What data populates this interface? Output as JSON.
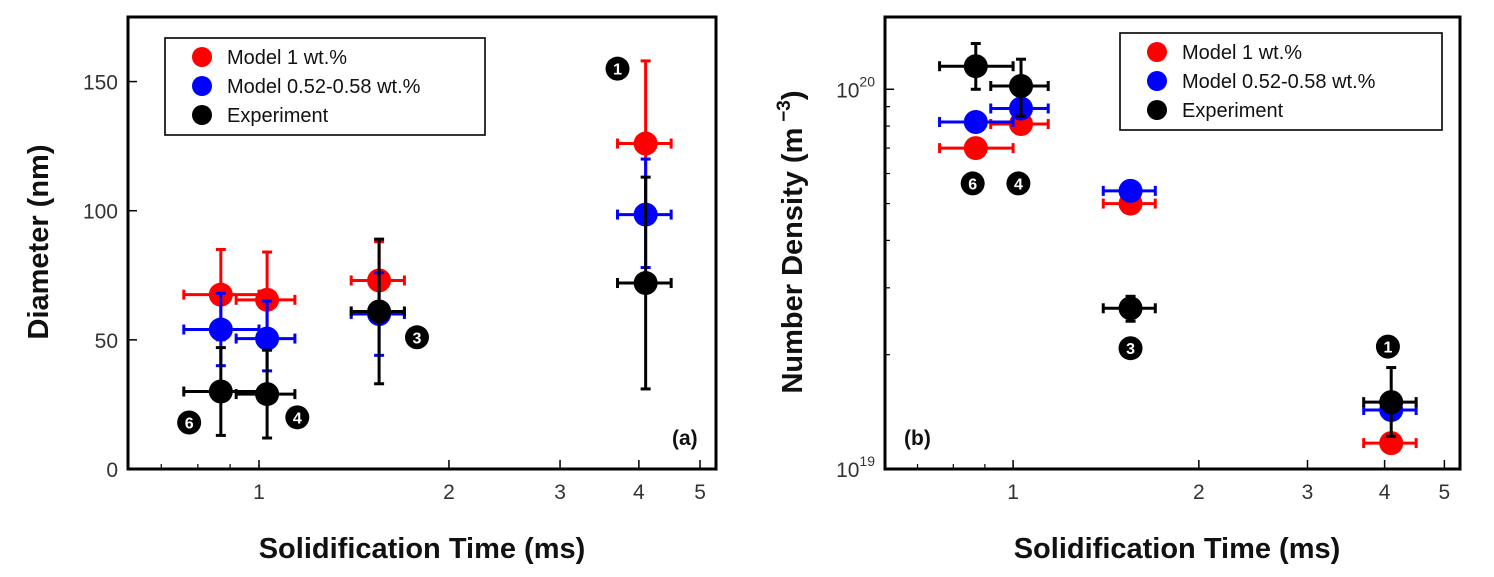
{
  "chart_data": [
    {
      "type": "scatter",
      "panel_label": "(a)",
      "xlabel": "Solidification Time (ms)",
      "ylabel": "Diameter (nm)",
      "xscale": "log",
      "yscale": "linear",
      "xlim": [
        0.62,
        5.3
      ],
      "ylim": [
        0,
        175
      ],
      "xticks": [
        1,
        2,
        3,
        4,
        5
      ],
      "xtick_labels": [
        "1",
        "2",
        "3",
        "4",
        "5"
      ],
      "yticks": [
        0,
        50,
        100,
        150
      ],
      "ytick_labels": [
        "0",
        "50",
        "100",
        "150"
      ],
      "legend_position": "top-left",
      "series": [
        {
          "name": "Model 1 wt.%",
          "color": "#ff0000",
          "points": [
            {
              "x": 0.87,
              "y": 67.5,
              "xerr": [
                0.76,
                1.0
              ],
              "yerr": [
                50,
                85
              ]
            },
            {
              "x": 1.03,
              "y": 65.5,
              "xerr": [
                0.92,
                1.14
              ],
              "yerr": [
                48,
                84
              ]
            },
            {
              "x": 1.55,
              "y": 73,
              "xerr": [
                1.4,
                1.7
              ],
              "yerr": [
                58,
                88
              ]
            },
            {
              "x": 4.1,
              "y": 126,
              "xerr": [
                3.7,
                4.5
              ],
              "yerr": [
                95,
                158
              ]
            }
          ]
        },
        {
          "name": "Model 0.52-0.58 wt.%",
          "color": "#0000ff",
          "points": [
            {
              "x": 0.87,
              "y": 54,
              "xerr": [
                0.76,
                1.0
              ],
              "yerr": [
                40,
                68
              ]
            },
            {
              "x": 1.03,
              "y": 50.5,
              "xerr": [
                0.92,
                1.14
              ],
              "yerr": [
                38,
                65
              ]
            },
            {
              "x": 1.55,
              "y": 60,
              "xerr": [
                1.4,
                1.7
              ],
              "yerr": [
                44,
                76
              ]
            },
            {
              "x": 4.1,
              "y": 98.5,
              "xerr": [
                3.7,
                4.5
              ],
              "yerr": [
                78,
                120
              ]
            }
          ]
        },
        {
          "name": "Experiment",
          "color": "#000000",
          "points": [
            {
              "x": 0.87,
              "y": 30,
              "xerr": [
                0.76,
                1.0
              ],
              "yerr": [
                13,
                47
              ]
            },
            {
              "x": 1.03,
              "y": 29,
              "xerr": [
                0.92,
                1.14
              ],
              "yerr": [
                12,
                46
              ]
            },
            {
              "x": 1.55,
              "y": 61,
              "xerr": [
                1.4,
                1.7
              ],
              "yerr": [
                33,
                89
              ]
            },
            {
              "x": 4.1,
              "y": 72,
              "xerr": [
                3.7,
                4.5
              ],
              "yerr": [
                31,
                113
              ]
            }
          ]
        }
      ],
      "annotations": [
        {
          "text": "6",
          "x": 0.775,
          "y": 18
        },
        {
          "text": "4",
          "x": 1.15,
          "y": 20
        },
        {
          "text": "3",
          "x": 1.78,
          "y": 51
        },
        {
          "text": "1",
          "x": 3.7,
          "y": 155
        }
      ]
    },
    {
      "type": "scatter",
      "panel_label": "(b)",
      "xlabel": "Solidification Time (ms)",
      "ylabel": "Number Density (m",
      "ylabel_exponent": "−3",
      "ylabel_close": ")",
      "xscale": "log",
      "yscale": "log",
      "xlim": [
        0.62,
        5.3
      ],
      "ylim": [
        1e+19,
        1.55e+20
      ],
      "xticks": [
        1,
        2,
        3,
        4,
        5
      ],
      "xtick_labels": [
        "1",
        "2",
        "3",
        "4",
        "5"
      ],
      "yticks": [
        1e+19,
        1e+20
      ],
      "ytick_base": "10",
      "ytick_exponents": [
        "19",
        "20"
      ],
      "legend_position": "top-right",
      "series": [
        {
          "name": "Model 1 wt.%",
          "color": "#ff0000",
          "points": [
            {
              "x": 0.87,
              "y": 7e+19,
              "xerr": [
                0.76,
                1.0
              ]
            },
            {
              "x": 1.03,
              "y": 8.1e+19,
              "xerr": [
                0.92,
                1.14
              ]
            },
            {
              "x": 1.55,
              "y": 5e+19,
              "xerr": [
                1.4,
                1.7
              ]
            },
            {
              "x": 4.1,
              "y": 1.17e+19,
              "xerr": [
                3.7,
                4.5
              ]
            }
          ]
        },
        {
          "name": "Model 0.52-0.58 wt.%",
          "color": "#0000ff",
          "points": [
            {
              "x": 0.87,
              "y": 8.2e+19,
              "xerr": [
                0.76,
                1.0
              ]
            },
            {
              "x": 1.03,
              "y": 8.9e+19,
              "xerr": [
                0.92,
                1.14
              ]
            },
            {
              "x": 1.55,
              "y": 5.4e+19,
              "xerr": [
                1.4,
                1.7
              ]
            },
            {
              "x": 4.1,
              "y": 1.43e+19,
              "xerr": [
                3.7,
                4.5
              ]
            }
          ]
        },
        {
          "name": "Experiment",
          "color": "#000000",
          "points": [
            {
              "x": 0.87,
              "y": 1.15e+20,
              "xerr": [
                0.76,
                1.0
              ],
              "yerr": [
                1e+20,
                1.32e+20
              ]
            },
            {
              "x": 1.03,
              "y": 1.02e+20,
              "xerr": [
                0.92,
                1.14
              ],
              "yerr": [
                8.5e+19,
                1.2e+20
              ]
            },
            {
              "x": 1.55,
              "y": 2.65e+19,
              "xerr": [
                1.4,
                1.7
              ],
              "yerr": [
                2.45e+19,
                2.85e+19
              ]
            },
            {
              "x": 4.1,
              "y": 1.5e+19,
              "xerr": [
                3.7,
                4.5
              ],
              "yerr": [
                1.22e+19,
                1.85e+19
              ]
            }
          ]
        }
      ],
      "annotations": [
        {
          "text": "6",
          "x": 0.86,
          "y": 5.65e+19
        },
        {
          "text": "4",
          "x": 1.02,
          "y": 5.65e+19
        },
        {
          "text": "3",
          "x": 1.55,
          "y": 2.08e+19
        },
        {
          "text": "1",
          "x": 4.05,
          "y": 2.1e+19
        }
      ]
    }
  ]
}
